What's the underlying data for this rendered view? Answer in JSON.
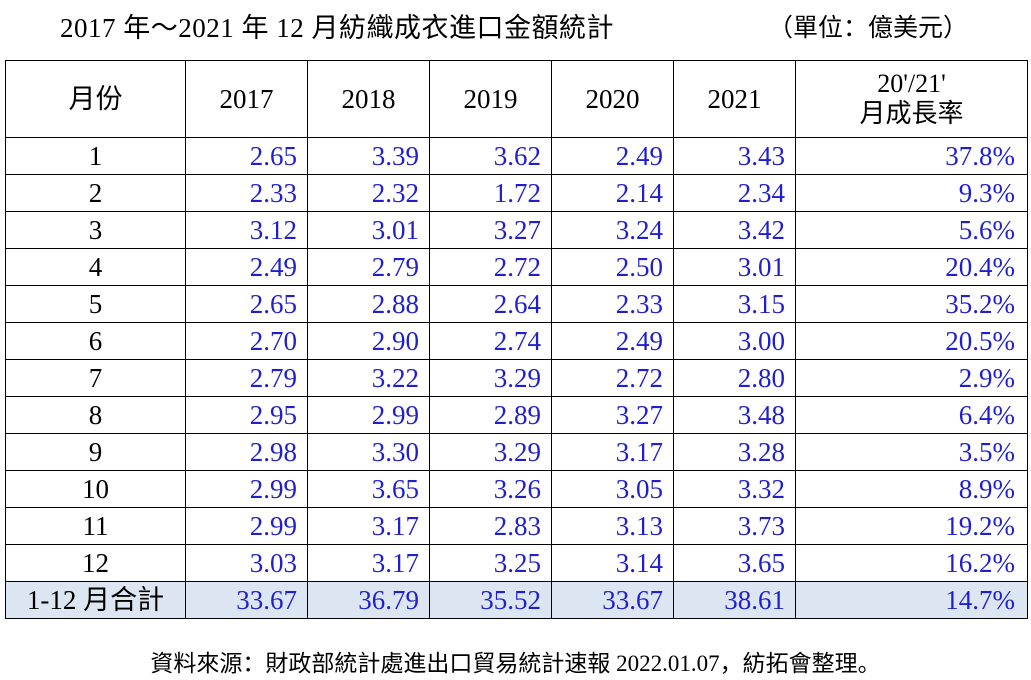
{
  "title": "2017 年～2021 年 12 月紡織成衣進口金額統計",
  "unit": "（單位：億美元）",
  "table": {
    "headers": [
      "月份",
      "2017",
      "2018",
      "2019",
      "2020",
      "2021"
    ],
    "growth_header_line1": "20'/21'",
    "growth_header_line2": "月成長率",
    "rows": [
      {
        "month": "1",
        "values": [
          "2.65",
          "3.39",
          "3.62",
          "2.49",
          "3.43"
        ],
        "growth": "37.8%"
      },
      {
        "month": "2",
        "values": [
          "2.33",
          "2.32",
          "1.72",
          "2.14",
          "2.34"
        ],
        "growth": "9.3%"
      },
      {
        "month": "3",
        "values": [
          "3.12",
          "3.01",
          "3.27",
          "3.24",
          "3.42"
        ],
        "growth": "5.6%"
      },
      {
        "month": "4",
        "values": [
          "2.49",
          "2.79",
          "2.72",
          "2.50",
          "3.01"
        ],
        "growth": "20.4%"
      },
      {
        "month": "5",
        "values": [
          "2.65",
          "2.88",
          "2.64",
          "2.33",
          "3.15"
        ],
        "growth": "35.2%"
      },
      {
        "month": "6",
        "values": [
          "2.70",
          "2.90",
          "2.74",
          "2.49",
          "3.00"
        ],
        "growth": "20.5%"
      },
      {
        "month": "7",
        "values": [
          "2.79",
          "3.22",
          "3.29",
          "2.72",
          "2.80"
        ],
        "growth": "2.9%"
      },
      {
        "month": "8",
        "values": [
          "2.95",
          "2.99",
          "2.89",
          "3.27",
          "3.48"
        ],
        "growth": "6.4%"
      },
      {
        "month": "9",
        "values": [
          "2.98",
          "3.30",
          "3.29",
          "3.17",
          "3.28"
        ],
        "growth": "3.5%"
      },
      {
        "month": "10",
        "values": [
          "2.99",
          "3.65",
          "3.26",
          "3.05",
          "3.32"
        ],
        "growth": "8.9%"
      },
      {
        "month": "11",
        "values": [
          "2.99",
          "3.17",
          "2.83",
          "3.13",
          "3.73"
        ],
        "growth": "19.2%"
      },
      {
        "month": "12",
        "values": [
          "3.03",
          "3.17",
          "3.25",
          "3.14",
          "3.65"
        ],
        "growth": "16.2%"
      }
    ],
    "total": {
      "month": "1-12 月合計",
      "values": [
        "33.67",
        "36.79",
        "35.52",
        "33.67",
        "38.61"
      ],
      "growth": "14.7%"
    }
  },
  "source": "資料來源：財政部統計處進出口貿易統計速報 2022.01.07，紡拓會整理。",
  "colors": {
    "value_text": "#1f1fcf",
    "total_row_bg": "#dce6f2",
    "border": "#000000"
  }
}
